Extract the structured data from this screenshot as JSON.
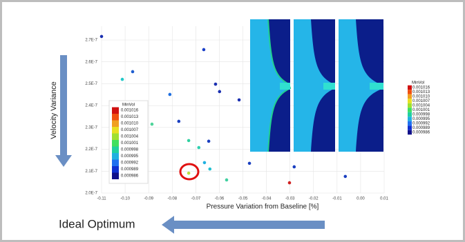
{
  "chart_data": {
    "type": "scatter",
    "x_label": "Pressure Variation from Baseline [%]",
    "y_label": "Velocity Variance",
    "annotation": "Ideal Optimum",
    "x": [
      -0.11,
      -0.0666,
      -0.0968,
      -0.1012,
      -0.0616,
      -0.0599,
      -0.081,
      -0.0516,
      -0.0886,
      -0.0772,
      -0.073,
      -0.0687,
      -0.0645,
      -0.0663,
      -0.064,
      -0.073,
      -0.0569,
      -0.0472,
      -0.0282,
      -0.0302,
      -0.0065
    ],
    "values": [
      2.716e-07,
      2.656e-07,
      2.555e-07,
      2.52e-07,
      2.498e-07,
      2.464e-07,
      2.451e-07,
      2.426e-07,
      2.315e-07,
      2.328e-07,
      2.24e-07,
      2.208e-07,
      2.237e-07,
      2.139e-07,
      2.11e-07,
      2.091e-07,
      2.06e-07,
      2.136e-07,
      2.12e-07,
      2.047e-07,
      2.076e-07
    ],
    "point_colors": [
      "#1a2fb0",
      "#1a3fc8",
      "#1f5fd0",
      "#22c8c8",
      "#1a2fb0",
      "#1a2fb0",
      "#1f6fe0",
      "#1a2fb0",
      "#4ed49a",
      "#1a3fc0",
      "#30d0a0",
      "#30d0b0",
      "#1a3fc0",
      "#20b0e0",
      "#20c0d0",
      "#b8e040",
      "#40d0a0",
      "#1a3fc0",
      "#1a3fc0",
      "#d02020",
      "#1a3fc0"
    ],
    "xlim": [
      -0.11,
      0.01
    ],
    "xticks": [
      -0.11,
      {
        "value": -0.1,
        "label": "-0.10"
      },
      -0.09,
      -0.08,
      -0.07,
      -0.06,
      -0.05,
      -0.04,
      -0.03,
      -0.02,
      -0.01,
      {
        "value": 0,
        "label": "0.00"
      },
      0.01
    ],
    "ylim": [
      2e-07,
      2.7e-07
    ],
    "yticks": [
      {
        "value": 2e-07,
        "label": "2.0E-7"
      },
      {
        "value": 2.1e-07,
        "label": "2.1E-7"
      },
      {
        "value": 2.2e-07,
        "label": "2.2E-7"
      },
      {
        "value": 2.3e-07,
        "label": "2.3E-7"
      },
      {
        "value": 2.4e-07,
        "label": "2.4E-7"
      },
      {
        "value": 2.5e-07,
        "label": "2.5E-7"
      },
      {
        "value": 2.6e-07,
        "label": "2.6E-7"
      },
      {
        "value": 2.7e-07,
        "label": "2.7E-7"
      }
    ],
    "grid": true,
    "colorbar": {
      "title": "MinVol",
      "labels": [
        "0.001016",
        "0.001013",
        "0.001010",
        "0.001007",
        "0.001004",
        "0.001001",
        "0.000998",
        "0.000995",
        "0.000992",
        "0.000989",
        "0.000986"
      ],
      "colors": [
        "#d01010",
        "#f05010",
        "#f0a020",
        "#e8e020",
        "#a0e030",
        "#40e060",
        "#20d0a0",
        "#20b0e0",
        "#2070f0",
        "#1030d0",
        "#10108a"
      ]
    }
  }
}
